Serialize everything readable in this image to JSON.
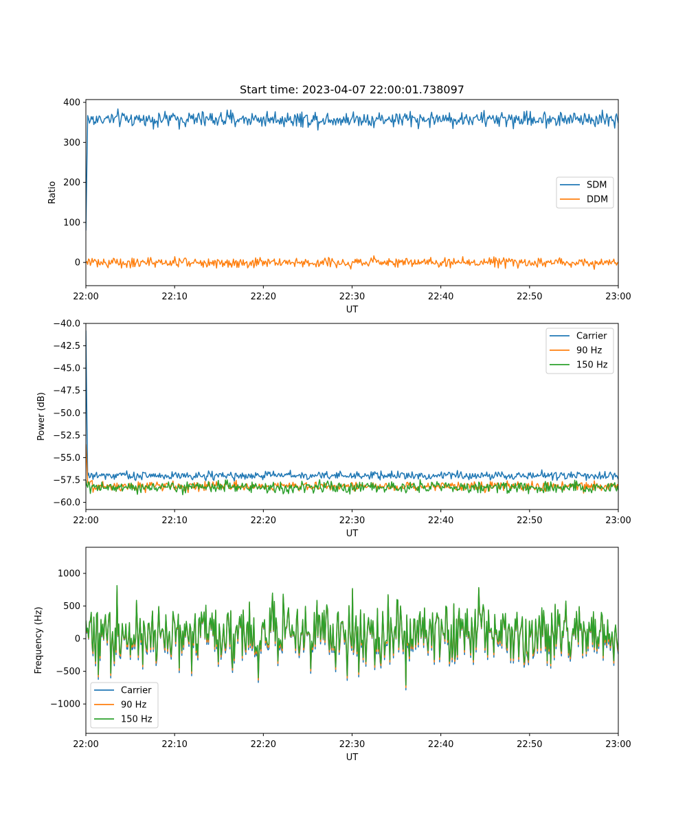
{
  "chart_data": [
    {
      "type": "line",
      "title": "Start time: 2023-04-07 22:00:01.738097",
      "xlabel": "UT",
      "ylabel": "Ratio",
      "x_range": [
        "22:00",
        "23:00"
      ],
      "x_ticks": [
        "22:00",
        "22:10",
        "22:20",
        "22:30",
        "22:40",
        "22:50",
        "23:00"
      ],
      "ylim": [
        -58,
        407
      ],
      "y_ticks": [
        400,
        300,
        200,
        100,
        0
      ],
      "legend": {
        "placement": "center-right",
        "items": [
          "SDM",
          "DDM"
        ]
      },
      "series": [
        {
          "name": "SDM",
          "color": "#1f77b4",
          "start": 80,
          "level": 358,
          "noise": 14,
          "points": 600
        },
        {
          "name": "DDM",
          "color": "#ff7f0e",
          "start": 0,
          "level": 0,
          "noise": 9,
          "points": 600
        }
      ]
    },
    {
      "type": "line",
      "xlabel": "UT",
      "ylabel": "Power (dB)",
      "x_range": [
        "22:00",
        "23:00"
      ],
      "x_ticks": [
        "22:00",
        "22:10",
        "22:20",
        "22:30",
        "22:40",
        "22:50",
        "23:00"
      ],
      "ylim": [
        -60.8,
        -40
      ],
      "y_ticks": [
        "−40.0",
        "−42.5",
        "−45.0",
        "−47.5",
        "−50.0",
        "−52.5",
        "−55.0",
        "−57.5",
        "−60.0"
      ],
      "legend": {
        "placement": "top-right",
        "items": [
          "Carrier",
          "90 Hz",
          "150 Hz"
        ]
      },
      "series": [
        {
          "name": "Carrier",
          "color": "#1f77b4",
          "start": -40.8,
          "level": -57.0,
          "noise": 0.35,
          "points": 600
        },
        {
          "name": "90 Hz",
          "color": "#ff7f0e",
          "start": -53.5,
          "level": -58.2,
          "noise": 0.4,
          "points": 600
        },
        {
          "name": "150 Hz",
          "color": "#2ca02c",
          "start": -57.5,
          "level": -58.3,
          "noise": 0.45,
          "points": 600
        }
      ]
    },
    {
      "type": "line",
      "xlabel": "UT",
      "ylabel": "Frequency (Hz)",
      "x_range": [
        "22:00",
        "23:00"
      ],
      "x_ticks": [
        "22:00",
        "22:10",
        "22:20",
        "22:30",
        "22:40",
        "22:50",
        "23:00"
      ],
      "ylim": [
        -1450,
        1400
      ],
      "y_ticks": [
        "1000",
        "500",
        "0",
        "−500",
        "−1000"
      ],
      "legend": {
        "placement": "lower-left",
        "items": [
          "Carrier",
          "90 Hz",
          "150 Hz"
        ]
      },
      "series": [
        {
          "name": "Carrier",
          "color": "#1f77b4",
          "offset": -60,
          "level": 50,
          "noise": 380,
          "points": 600
        },
        {
          "name": "90 Hz",
          "color": "#ff7f0e",
          "offset": -30,
          "level": 50,
          "noise": 380,
          "points": 600
        },
        {
          "name": "150 Hz",
          "color": "#2ca02c",
          "offset": 0,
          "level": 50,
          "noise": 380,
          "points": 600
        }
      ]
    }
  ]
}
